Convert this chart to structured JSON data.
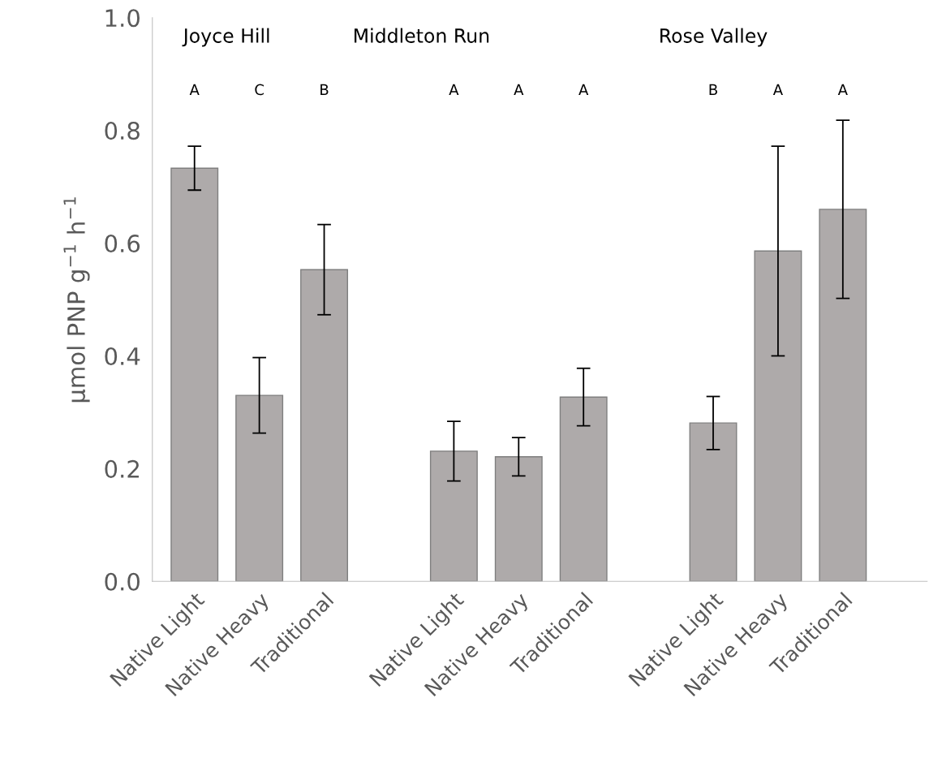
{
  "chart_data": {
    "type": "bar",
    "ylabel": "µmol PNP g$^{−1}$ h$^{−1}$",
    "categories": [
      "Native Light",
      "Native Heavy",
      "Traditional",
      null,
      "Native Light",
      "Native Heavy",
      "Traditional",
      null,
      "Native Light",
      "Native Heavy",
      "Traditional"
    ],
    "values": [
      0.733,
      0.33,
      0.553,
      null,
      0.231,
      0.221,
      0.327,
      null,
      0.281,
      0.586,
      0.66
    ],
    "errors": [
      0.039,
      0.067,
      0.08,
      null,
      0.053,
      0.034,
      0.051,
      null,
      0.047,
      0.186,
      0.158
    ],
    "color": "#aeaaaa",
    "ylim": [
      0,
      1.0
    ],
    "yticks": [
      {
        "value": 0,
        "label": "0.0"
      },
      0.2,
      0.4,
      0.6,
      0.8,
      {
        "value": 1.0,
        "label": "1.0"
      }
    ],
    "grid": false,
    "legend": false,
    "annotations": [
      "Joyce Hill",
      "Middleton Run",
      "Rose Valley",
      "A",
      "C",
      "B",
      "A",
      "A",
      "A",
      "B",
      "A",
      "A"
    ]
  }
}
